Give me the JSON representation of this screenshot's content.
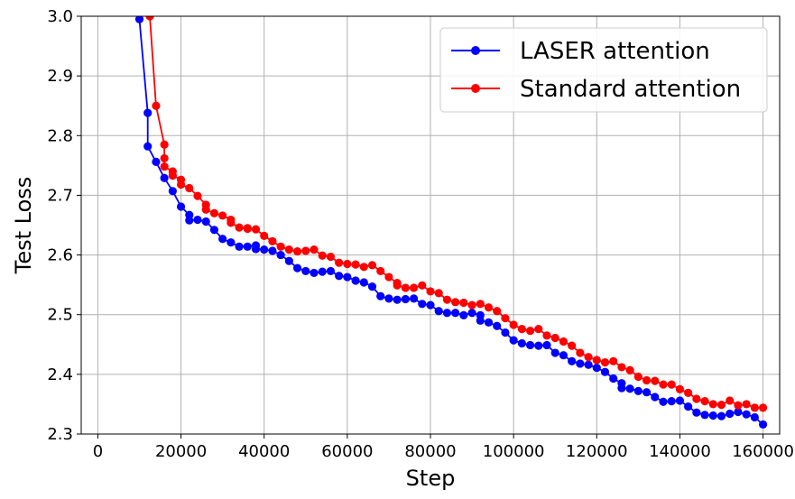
{
  "chart_data": {
    "type": "line",
    "title": "",
    "xlabel": "Step",
    "ylabel": "Test Loss",
    "xlim": [
      -4000,
      164000
    ],
    "ylim": [
      2.3,
      3.0
    ],
    "grid": true,
    "legend_position": "top-right",
    "x_ticks": [
      0,
      20000,
      40000,
      60000,
      80000,
      100000,
      120000,
      140000,
      160000
    ],
    "x_tick_labels": [
      "0",
      "20000",
      "40000",
      "60000",
      "80000",
      "100000",
      "120000",
      "140000",
      "160000"
    ],
    "y_ticks": [
      2.3,
      2.4,
      2.5,
      2.6,
      2.7,
      2.8,
      2.9,
      3.0
    ],
    "y_tick_labels": [
      "2.3",
      "2.4",
      "2.5",
      "2.6",
      "2.7",
      "2.8",
      "2.9",
      "3.0"
    ],
    "series": [
      {
        "name": "LASER attention",
        "color": "#0000ff",
        "x": [
          10000,
          12000,
          12000,
          14000,
          16000,
          18000,
          20000,
          22000,
          22000,
          24000,
          26000,
          28000,
          30000,
          32000,
          34000,
          36000,
          38000,
          38000,
          40000,
          42000,
          44000,
          46000,
          48000,
          50000,
          52000,
          54000,
          56000,
          58000,
          60000,
          62000,
          64000,
          66000,
          68000,
          70000,
          72000,
          74000,
          76000,
          78000,
          80000,
          82000,
          84000,
          86000,
          88000,
          90000,
          92000,
          92000,
          94000,
          96000,
          98000,
          100000,
          102000,
          104000,
          106000,
          108000,
          110000,
          112000,
          114000,
          116000,
          118000,
          120000,
          122000,
          124000,
          126000,
          126000,
          128000,
          130000,
          132000,
          134000,
          136000,
          138000,
          140000,
          142000,
          144000,
          146000,
          148000,
          150000,
          152000,
          154000,
          156000,
          158000,
          160000
        ],
        "y": [
          2.995,
          2.838,
          2.782,
          2.756,
          2.729,
          2.707,
          2.681,
          2.667,
          2.658,
          2.659,
          2.656,
          2.642,
          2.627,
          2.621,
          2.614,
          2.614,
          2.616,
          2.61,
          2.609,
          2.607,
          2.6,
          2.59,
          2.578,
          2.573,
          2.57,
          2.572,
          2.573,
          2.565,
          2.563,
          2.557,
          2.554,
          2.547,
          2.531,
          2.527,
          2.525,
          2.526,
          2.527,
          2.518,
          2.516,
          2.506,
          2.503,
          2.503,
          2.499,
          2.503,
          2.499,
          2.49,
          2.487,
          2.481,
          2.47,
          2.457,
          2.452,
          2.449,
          2.448,
          2.449,
          2.436,
          2.432,
          2.422,
          2.418,
          2.416,
          2.411,
          2.404,
          2.393,
          2.385,
          2.377,
          2.376,
          2.372,
          2.37,
          2.362,
          2.354,
          2.355,
          2.356,
          2.346,
          2.336,
          2.332,
          2.331,
          2.33,
          2.334,
          2.337,
          2.333,
          2.328,
          2.316
        ]
      },
      {
        "name": "Standard attention",
        "color": "#ff0000",
        "x": [
          12500,
          14000,
          16000,
          16000,
          16000,
          18000,
          18000,
          20000,
          20000,
          22000,
          24000,
          26000,
          26000,
          28000,
          30000,
          32000,
          32000,
          34000,
          36000,
          36000,
          38000,
          40000,
          42000,
          44000,
          46000,
          48000,
          50000,
          52000,
          54000,
          56000,
          58000,
          60000,
          62000,
          64000,
          66000,
          68000,
          70000,
          72000,
          72000,
          74000,
          76000,
          78000,
          80000,
          82000,
          84000,
          86000,
          88000,
          90000,
          92000,
          94000,
          96000,
          98000,
          100000,
          102000,
          104000,
          106000,
          108000,
          110000,
          112000,
          114000,
          116000,
          118000,
          120000,
          122000,
          124000,
          126000,
          128000,
          130000,
          132000,
          134000,
          136000,
          138000,
          140000,
          142000,
          144000,
          146000,
          148000,
          150000,
          152000,
          154000,
          156000,
          158000,
          160000
        ],
        "y": [
          3.0,
          2.85,
          2.785,
          2.762,
          2.748,
          2.74,
          2.733,
          2.726,
          2.718,
          2.712,
          2.699,
          2.684,
          2.676,
          2.67,
          2.666,
          2.659,
          2.654,
          2.646,
          2.645,
          2.644,
          2.643,
          2.632,
          2.623,
          2.614,
          2.609,
          2.606,
          2.607,
          2.609,
          2.599,
          2.597,
          2.587,
          2.585,
          2.584,
          2.58,
          2.583,
          2.573,
          2.563,
          2.553,
          2.549,
          2.545,
          2.545,
          2.549,
          2.539,
          2.536,
          2.525,
          2.521,
          2.52,
          2.516,
          2.518,
          2.512,
          2.506,
          2.494,
          2.483,
          2.476,
          2.473,
          2.476,
          2.465,
          2.461,
          2.455,
          2.448,
          2.436,
          2.429,
          2.424,
          2.42,
          2.422,
          2.412,
          2.407,
          2.396,
          2.39,
          2.389,
          2.383,
          2.383,
          2.375,
          2.369,
          2.359,
          2.355,
          2.35,
          2.349,
          2.356,
          2.348,
          2.35,
          2.344,
          2.344
        ]
      }
    ]
  }
}
